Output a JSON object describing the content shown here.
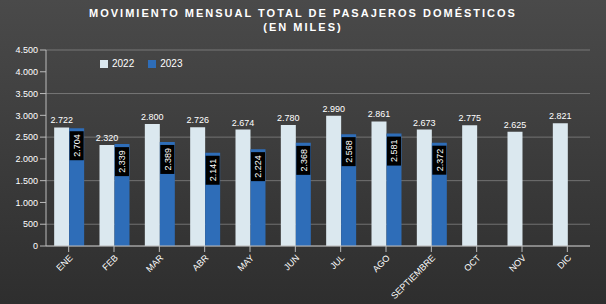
{
  "chart_data": {
    "type": "bar",
    "title": "MOVIMIENTO MENSUAL TOTAL DE PASAJEROS DOMÉSTICOS",
    "subtitle": "(EN MILES)",
    "categories": [
      "ENE",
      "FEB",
      "MAR",
      "ABR",
      "MAY",
      "JUN",
      "JUL",
      "AGO",
      "SEPTIEMBRE",
      "OCT",
      "NOV",
      "DIC"
    ],
    "series": [
      {
        "name": "2022",
        "color": "#dbe8ef",
        "values": [
          2722,
          2320,
          2800,
          2726,
          2674,
          2780,
          2990,
          2861,
          2673,
          2775,
          2625,
          2821
        ],
        "value_labels": [
          "2.722",
          "2.320",
          "2.800",
          "2.726",
          "2.674",
          "2.780",
          "2.990",
          "2.861",
          "2.673",
          "2.775",
          "2.625",
          "2.821"
        ]
      },
      {
        "name": "2023",
        "color": "#2e6db8",
        "values": [
          2704,
          2339,
          2389,
          2141,
          2224,
          2368,
          2568,
          2581,
          2372,
          null,
          null,
          null
        ],
        "value_labels": [
          "2.704",
          "2.339",
          "2.389",
          "2.141",
          "2.224",
          "2.368",
          "2.568",
          "2.581",
          "2.372",
          null,
          null,
          null
        ]
      }
    ],
    "ylim": [
      0,
      4500
    ],
    "yticks": [
      0,
      500,
      {
        "value": 1000,
        "label": "1.000"
      },
      {
        "value": 1500,
        "label": "1.500"
      },
      {
        "value": 2000,
        "label": "2.000"
      },
      {
        "value": 2500,
        "label": "2.500"
      },
      {
        "value": 3000,
        "label": "3.000"
      },
      {
        "value": 3500,
        "label": "3.500"
      },
      {
        "value": 4000,
        "label": "4.000"
      },
      {
        "value": 4500,
        "label": "4.500"
      }
    ],
    "grid": true,
    "data_labels": true,
    "legend": "top"
  }
}
